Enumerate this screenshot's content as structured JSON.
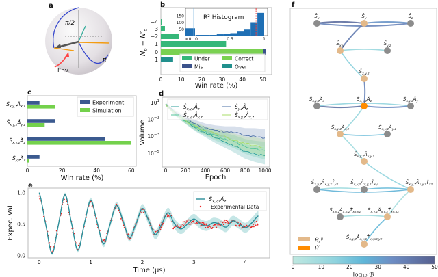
{
  "panel_labels": {
    "a": "a",
    "b": "b",
    "c": "c",
    "d": "d",
    "e": "e",
    "f": "f"
  },
  "sphere": {
    "label_half_pi": "π/2",
    "label_pi": "π",
    "label_env": "Env.",
    "colors": {
      "arc": "#3344cc",
      "env": "#ff4444",
      "orange": "#f39c12"
    }
  },
  "chart_data": [
    {
      "id": "b",
      "type": "bar",
      "orientation": "horizontal",
      "stacked": true,
      "xlabel": "Win rate (%)",
      "ylabel_parts": [
        "N",
        "p",
        " − N′",
        "p"
      ],
      "categories": [
        "-4",
        "-3",
        "-2",
        "-1",
        "0",
        "1"
      ],
      "category_labels": [
        "−4",
        "−3",
        "−2",
        "−1",
        "0",
        "1"
      ],
      "series": [
        {
          "name": "Under",
          "color": "#35b779",
          "values": [
            0.5,
            2,
            9,
            32,
            0,
            0
          ]
        },
        {
          "name": "Correct",
          "color": "#7ad151",
          "values": [
            0,
            0,
            0,
            0,
            50,
            0
          ]
        },
        {
          "name": "Mis",
          "color": "#3b528b",
          "values": [
            0,
            0,
            0,
            0,
            1.5,
            0
          ]
        },
        {
          "name": "Over",
          "color": "#21908d",
          "values": [
            0,
            0,
            0,
            0,
            0,
            6
          ]
        }
      ],
      "xlim": [
        0,
        54
      ],
      "xticks": [
        0,
        10,
        20,
        30,
        40,
        50
      ],
      "legend": "bottom-right"
    },
    {
      "id": "b-inset",
      "type": "bar",
      "title": "R² Histogram",
      "bins": [
        "<0",
        "0-0.1",
        "0.1-0.2",
        "0.2-0.3",
        "0.3-0.4",
        "0.4-0.5",
        "0.5-0.6",
        "0.6-0.7",
        "0.7-0.8",
        "0.8-0.9",
        "0.9-1"
      ],
      "values": [
        55,
        5,
        5,
        5,
        10,
        12,
        18,
        30,
        45,
        100,
        170
      ],
      "xtick_labels": [
        "<0",
        "0",
        "0.5",
        "1"
      ],
      "yticks": [
        50,
        100,
        150
      ],
      "threshold": 0.88,
      "color": "#1f6fb4",
      "threshold_color": "#e84040"
    },
    {
      "id": "c",
      "type": "bar",
      "orientation": "horizontal",
      "xlabel": "Win rate (%)",
      "categories": [
        [
          [
            "Ŝ",
            "x,y,z"
          ],
          [
            "Â",
            "x,z"
          ]
        ],
        [
          [
            "Ŝ",
            "x,y,z"
          ],
          [
            "Â",
            "y,z"
          ]
        ],
        [
          [
            "Ŝ",
            "x,y,z"
          ],
          [
            "Â",
            "z"
          ]
        ],
        [
          [
            "Ŝ",
            "y,z"
          ],
          [
            "Â",
            "z"
          ]
        ]
      ],
      "series": [
        {
          "name": "Experiment",
          "color": "#3b5a8f",
          "values": [
            7,
            16,
            45,
            7
          ]
        },
        {
          "name": "Simulation",
          "color": "#74d14c",
          "values": [
            16,
            10,
            60,
            1
          ]
        }
      ],
      "xlim": [
        0,
        63
      ],
      "xticks": [
        0,
        20,
        40,
        60
      ],
      "legend": "top-right"
    },
    {
      "id": "d",
      "type": "line",
      "xlabel": "Epoch",
      "ylabel": "Volume",
      "yscale": "log",
      "ytick_exponents": [
        1,
        -1,
        -3,
        -5
      ],
      "xticks": [
        0,
        200,
        400,
        600,
        800,
        1000
      ],
      "xlim": [
        -30,
        1020
      ],
      "x": [
        0,
        100,
        200,
        300,
        400,
        500,
        600,
        700,
        800,
        900,
        1000
      ],
      "series": [
        {
          "name_parts": [
            [
              "Ŝ",
              "x,y,z"
            ],
            [
              "Â",
              "z"
            ]
          ],
          "color": "#2a9d9a",
          "log10_values": [
            0.8,
            -0.4,
            -1.2,
            -2.0,
            -2.6,
            -3.2,
            -3.7,
            -4.2,
            -4.8,
            -5.1,
            -5.3
          ]
        },
        {
          "name_parts": [
            [
              "Ŝ",
              "y,z"
            ],
            [
              "Â",
              "z"
            ]
          ],
          "color": "#4a6fa5",
          "log10_values": [
            0.8,
            -0.2,
            -0.9,
            -1.5,
            -2.0,
            -2.3,
            -2.5,
            -2.6,
            -2.9,
            -3.0,
            -3.2
          ]
        },
        {
          "name_parts": [
            [
              "Ŝ",
              "x,y,z"
            ],
            [
              "Â",
              "y,z"
            ]
          ],
          "color": "#52c39a",
          "log10_values": [
            0.8,
            -0.3,
            -1.2,
            -1.9,
            -2.4,
            -2.9,
            -3.3,
            -3.7,
            -4.2,
            -4.5,
            -4.7
          ]
        },
        {
          "name_parts": [
            [
              "Ŝ",
              "x,y,z"
            ],
            [
              "Â",
              "x,z"
            ]
          ],
          "color": "#a8dc6a",
          "log10_values": [
            0.8,
            -0.3,
            -1.1,
            -1.8,
            -2.3,
            -2.7,
            -3.0,
            -3.5,
            -3.9,
            -4.1,
            -4.4
          ]
        }
      ],
      "legend": "top"
    },
    {
      "id": "e",
      "type": "line",
      "xlabel": "Time (μs)",
      "ylabel": "Expec. Val",
      "xticks": [
        0,
        1,
        2,
        3,
        4
      ],
      "yticks": [
        0.0,
        0.5,
        1.0
      ],
      "ytick_labels": [
        "0.0",
        "0.5",
        "1.0"
      ],
      "ylim": [
        -0.03,
        1.07
      ],
      "model": {
        "name_parts": [
          [
            "Ŝ",
            "x,y,z"
          ],
          [
            "Â",
            "z"
          ]
        ],
        "color": "#2a8f9a",
        "x": [
          0,
          0.125,
          0.25,
          0.375,
          0.5,
          0.625,
          0.75,
          0.875,
          1.0,
          1.125,
          1.25,
          1.375,
          1.5,
          1.625,
          1.75,
          1.875,
          2.0,
          2.125,
          2.25,
          2.375,
          2.5,
          2.625,
          2.75,
          2.875,
          3.0,
          3.125,
          3.25,
          3.375,
          3.5,
          3.625,
          3.75,
          3.875,
          4.0,
          4.125,
          4.25
        ],
        "y": [
          1.0,
          0.5,
          0.03,
          0.5,
          0.97,
          0.52,
          0.08,
          0.5,
          0.88,
          0.52,
          0.18,
          0.5,
          0.8,
          0.55,
          0.28,
          0.5,
          0.75,
          0.55,
          0.33,
          0.5,
          0.68,
          0.5,
          0.42,
          0.5,
          0.58,
          0.5,
          0.47,
          0.52,
          0.5,
          0.45,
          0.55,
          0.5,
          0.44,
          0.52,
          0.63
        ]
      },
      "experimental": {
        "name": "Experimental Data",
        "color": "#ee2222"
      },
      "legend": "top-right"
    }
  ],
  "graph": {
    "nodes": [
      {
        "id": "sx",
        "parts": [
          [
            "Ŝ",
            "x"
          ]
        ],
        "kind": "other"
      },
      {
        "id": "sy",
        "parts": [
          [
            "Ŝ",
            "y"
          ]
        ],
        "kind": "hc"
      },
      {
        "id": "sz",
        "parts": [
          [
            "Ŝ",
            "z"
          ]
        ],
        "kind": "other"
      },
      {
        "id": "sxy",
        "parts": [
          [
            "Ŝ",
            "x,y"
          ]
        ],
        "kind": "hc"
      },
      {
        "id": "syz",
        "parts": [
          [
            "Ŝ",
            "y,z"
          ]
        ],
        "kind": "other"
      },
      {
        "id": "sxyz",
        "parts": [
          [
            "Ŝ",
            "x,y,z"
          ]
        ],
        "kind": "hc"
      },
      {
        "id": "ax",
        "parts": [
          [
            "Ŝ",
            "x,y,z"
          ],
          [
            "Â",
            "x"
          ]
        ],
        "kind": "other"
      },
      {
        "id": "az",
        "parts": [
          [
            "Ŝ",
            "x,y,z"
          ],
          [
            "Â",
            "z"
          ]
        ],
        "kind": "h"
      },
      {
        "id": "ay",
        "parts": [
          [
            "Ŝ",
            "x,y,z"
          ],
          [
            "Â",
            "y"
          ]
        ],
        "kind": "other"
      },
      {
        "id": "axz",
        "parts": [
          [
            "Ŝ",
            "x,y,z"
          ],
          [
            "Â",
            "x,z"
          ]
        ],
        "kind": "hc"
      },
      {
        "id": "ayz",
        "parts": [
          [
            "Ŝ",
            "x,y,z"
          ],
          [
            "Â",
            "y,z"
          ]
        ],
        "kind": "other"
      },
      {
        "id": "axyz",
        "parts": [
          [
            "Ŝ",
            "x,y,z"
          ],
          [
            "Â",
            "x,y,z"
          ]
        ],
        "kind": "hc"
      },
      {
        "id": "tyz",
        "parts": [
          [
            "Ŝ",
            "x,y,z"
          ],
          [
            "Â",
            "x,y,z"
          ],
          [
            "T̂",
            "yz"
          ]
        ],
        "kind": "other"
      },
      {
        "id": "txy",
        "parts": [
          [
            "Ŝ",
            "x,y,z"
          ],
          [
            "Â",
            "x,y,z"
          ],
          [
            "T̂",
            "xy"
          ]
        ],
        "kind": "other"
      },
      {
        "id": "txz",
        "parts": [
          [
            "Ŝ",
            "x,y,z"
          ],
          [
            "Â",
            "x,y,z"
          ],
          [
            "T̂",
            "xz"
          ]
        ],
        "kind": "hc"
      },
      {
        "id": "txzyz",
        "parts": [
          [
            "Ŝ",
            "x,y,z"
          ],
          [
            "Â",
            "x,y,z"
          ],
          [
            "T̂",
            "xz,yz"
          ]
        ],
        "kind": "other"
      },
      {
        "id": "txyxz",
        "parts": [
          [
            "Ŝ",
            "x,y,z"
          ],
          [
            "Â",
            "x,y,z"
          ],
          [
            "T̂",
            "xy,xz"
          ]
        ],
        "kind": "hc"
      },
      {
        "id": "tall",
        "parts": [
          [
            "Ŝ",
            "x,y,z"
          ],
          [
            "Â",
            "x,y,z"
          ],
          [
            "T̂",
            "xy,xz,yz"
          ]
        ],
        "kind": "hc"
      }
    ],
    "edges": [
      {
        "from": "sx",
        "to": "sy",
        "log10_B": 46
      },
      {
        "from": "sx",
        "to": "sz",
        "log10_B": 40
      },
      {
        "from": "sy",
        "to": "sz",
        "log10_B": 35
      },
      {
        "from": "sy",
        "to": "sxy",
        "log10_B": 42
      },
      {
        "from": "sxy",
        "to": "syz",
        "log10_B": 10
      },
      {
        "from": "sxy",
        "to": "sxyz",
        "log10_B": 14
      },
      {
        "from": "sxyz",
        "to": "az",
        "log10_B": 40
      },
      {
        "from": "ax",
        "to": "az",
        "log10_B": 45
      },
      {
        "from": "ax",
        "to": "ay",
        "log10_B": 12
      },
      {
        "from": "az",
        "to": "ay",
        "log10_B": 38
      },
      {
        "from": "az",
        "to": "axz",
        "log10_B": 10
      },
      {
        "from": "axz",
        "to": "ayz",
        "log10_B": 22
      },
      {
        "from": "axz",
        "to": "axyz",
        "log10_B": 8
      },
      {
        "from": "axyz",
        "to": "txz",
        "log10_B": 12
      },
      {
        "from": "tyz",
        "to": "txy",
        "log10_B": 8
      },
      {
        "from": "tyz",
        "to": "txz",
        "log10_B": 26
      },
      {
        "from": "txy",
        "to": "txz",
        "log10_B": 22
      },
      {
        "from": "txz",
        "to": "txyxz",
        "log10_B": 6
      },
      {
        "from": "txzyz",
        "to": "txyxz",
        "log10_B": 8
      },
      {
        "from": "txyxz",
        "to": "tall",
        "log10_B": 24
      }
    ],
    "node_colors": {
      "hc": "#e3b98a",
      "h": "#ff8c00",
      "other": "#8c8c8c"
    },
    "legend": [
      {
        "kind": "hc",
        "parts": [
          [
            "Ĥ",
            "C"
          ]
        ],
        "sup": "μ"
      },
      {
        "kind": "h",
        "parts": [
          [
            "Ĥ",
            ""
          ]
        ],
        "sup": "′"
      }
    ],
    "colorbar": {
      "label": "log₁₀ ℬ",
      "ticks": [
        0,
        10,
        20,
        30,
        40,
        50
      ],
      "range": [
        0,
        50
      ],
      "colormap": [
        "#bfe8e0",
        "#8fd3de",
        "#5fb6d8",
        "#6d8dc4",
        "#56608f"
      ]
    }
  }
}
